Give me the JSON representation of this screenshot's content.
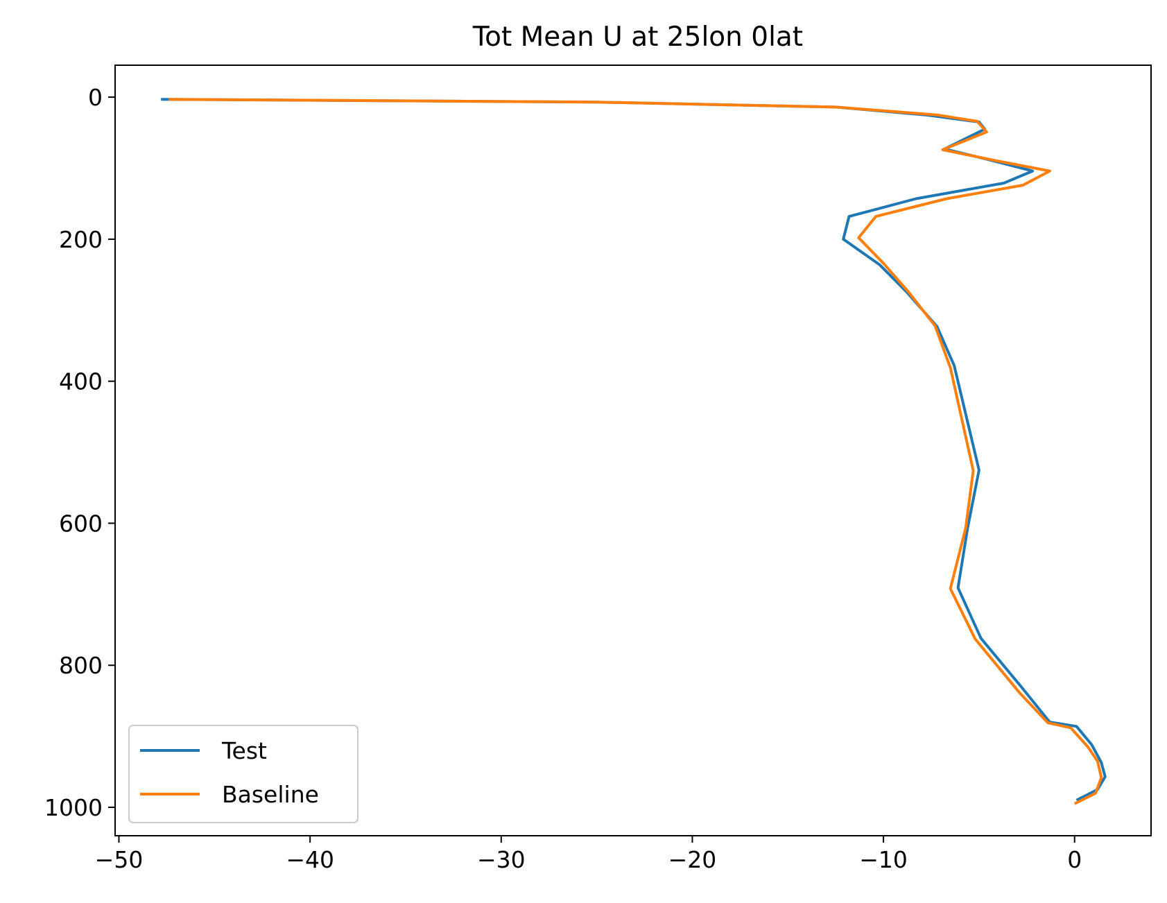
{
  "chart_data": {
    "type": "line",
    "title": "Tot Mean U at 25lon 0lat",
    "xlabel": "",
    "ylabel": "",
    "xlim": [
      -50.2,
      4
    ],
    "ylim": [
      1040,
      -45
    ],
    "y_inverted": true,
    "xticks": [
      -50,
      -40,
      -30,
      -20,
      -10,
      0
    ],
    "xtick_labels": [
      "−50",
      "−40",
      "−30",
      "−20",
      "−10",
      "0"
    ],
    "yticks": [
      0,
      200,
      400,
      600,
      800,
      1000
    ],
    "ytick_labels": [
      "0",
      "200",
      "400",
      "600",
      "800",
      "1000"
    ],
    "grid": false,
    "legend_position": "lower-left",
    "series": [
      {
        "name": "Test",
        "color": "#1f77b4",
        "points": [
          [
            -47.8,
            3
          ],
          [
            -25,
            7
          ],
          [
            -12.5,
            14
          ],
          [
            -7.8,
            25
          ],
          [
            -5.0,
            35
          ],
          [
            -4.7,
            45
          ],
          [
            -6.8,
            73
          ],
          [
            -4.5,
            88
          ],
          [
            -2.2,
            104
          ],
          [
            -3.7,
            121
          ],
          [
            -8.3,
            143
          ],
          [
            -11.8,
            168
          ],
          [
            -12.1,
            200
          ],
          [
            -10.2,
            236
          ],
          [
            -8.8,
            274
          ],
          [
            -7.2,
            323
          ],
          [
            -6.3,
            378
          ],
          [
            -5.0,
            525
          ],
          [
            -5.6,
            607
          ],
          [
            -6.1,
            691
          ],
          [
            -4.9,
            762
          ],
          [
            -2.8,
            830
          ],
          [
            -1.3,
            880
          ],
          [
            0.1,
            886
          ],
          [
            0.9,
            912
          ],
          [
            1.4,
            937
          ],
          [
            1.6,
            957
          ],
          [
            1.2,
            975
          ],
          [
            0.1,
            990
          ]
        ]
      },
      {
        "name": "Baseline",
        "color": "#ff7f0e",
        "points": [
          [
            -47.4,
            3
          ],
          [
            -25,
            7
          ],
          [
            -12.5,
            14
          ],
          [
            -7.2,
            25
          ],
          [
            -5.1,
            34
          ],
          [
            -4.6,
            49
          ],
          [
            -6.9,
            74
          ],
          [
            -4.2,
            89
          ],
          [
            -1.3,
            104
          ],
          [
            -2.7,
            124
          ],
          [
            -6.7,
            143
          ],
          [
            -10.4,
            168
          ],
          [
            -11.3,
            198
          ],
          [
            -10.0,
            234
          ],
          [
            -8.7,
            274
          ],
          [
            -7.3,
            322
          ],
          [
            -6.5,
            381
          ],
          [
            -5.3,
            526
          ],
          [
            -5.7,
            607
          ],
          [
            -6.5,
            692
          ],
          [
            -5.2,
            763
          ],
          [
            -2.9,
            838
          ],
          [
            -1.4,
            881
          ],
          [
            -0.2,
            888
          ],
          [
            0.7,
            915
          ],
          [
            1.2,
            935
          ],
          [
            1.4,
            958
          ],
          [
            1.1,
            980
          ],
          [
            0,
            995
          ]
        ]
      }
    ]
  }
}
